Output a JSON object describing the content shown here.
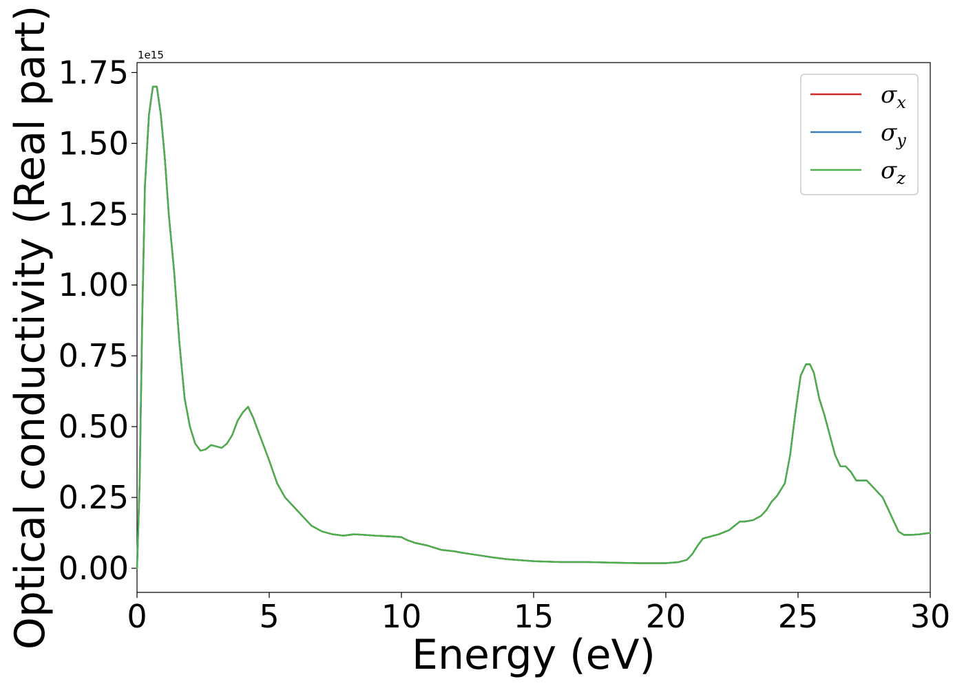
{
  "chart_data": {
    "type": "line",
    "xlabel": "Energy (eV)",
    "ylabel": "Optical conductivity (Real part)",
    "y_offset_label": "1e15",
    "xlim": [
      0,
      30
    ],
    "ylim": [
      -0.085,
      1.785
    ],
    "x_ticks": [
      0,
      5,
      10,
      15,
      20,
      25,
      30
    ],
    "x_tick_labels": [
      "0",
      "5",
      "10",
      "15",
      "20",
      "25",
      "30"
    ],
    "y_ticks": [
      0.0,
      0.25,
      0.5,
      0.75,
      1.0,
      1.25,
      1.5,
      1.75
    ],
    "y_tick_labels": [
      "0.00",
      "0.25",
      "0.50",
      "0.75",
      "1.00",
      "1.25",
      "1.50",
      "1.75"
    ],
    "grid": false,
    "legend_position": "top-right",
    "x": [
      0,
      0.1,
      0.2,
      0.3,
      0.45,
      0.6,
      0.75,
      0.9,
      1.05,
      1.2,
      1.4,
      1.6,
      1.8,
      2.0,
      2.2,
      2.4,
      2.6,
      2.8,
      3.0,
      3.2,
      3.4,
      3.6,
      3.8,
      4.0,
      4.2,
      4.4,
      4.6,
      4.8,
      5.0,
      5.3,
      5.6,
      5.9,
      6.2,
      6.6,
      7.0,
      7.4,
      7.8,
      8.2,
      8.6,
      9.0,
      9.5,
      10.0,
      10.2,
      10.5,
      11.0,
      11.5,
      12.0,
      12.3,
      13.0,
      13.5,
      14.0,
      15.0,
      16.0,
      17.0,
      18.0,
      19.0,
      19.5,
      20.0,
      20.5,
      20.8,
      21.0,
      21.2,
      21.4,
      21.6,
      22.0,
      22.4,
      22.6,
      22.8,
      23.0,
      23.3,
      23.6,
      23.8,
      24.0,
      24.2,
      24.5,
      24.7,
      24.9,
      25.1,
      25.3,
      25.45,
      25.6,
      25.8,
      26.0,
      26.2,
      26.4,
      26.6,
      26.8,
      27.0,
      27.2,
      27.4,
      27.6,
      27.8,
      28.0,
      28.2,
      28.4,
      28.6,
      28.8,
      29.0,
      29.3,
      29.6,
      30.0
    ],
    "series": [
      {
        "name": "σx",
        "color": "#d62728",
        "values": [
          0.0,
          0.3,
          0.9,
          1.35,
          1.6,
          1.7,
          1.7,
          1.6,
          1.45,
          1.25,
          1.05,
          0.8,
          0.6,
          0.5,
          0.44,
          0.415,
          0.42,
          0.435,
          0.43,
          0.425,
          0.44,
          0.47,
          0.52,
          0.55,
          0.57,
          0.53,
          0.48,
          0.43,
          0.38,
          0.3,
          0.25,
          0.22,
          0.19,
          0.15,
          0.13,
          0.12,
          0.115,
          0.12,
          0.118,
          0.115,
          0.113,
          0.11,
          0.1,
          0.09,
          0.08,
          0.065,
          0.06,
          0.055,
          0.045,
          0.038,
          0.032,
          0.025,
          0.022,
          0.022,
          0.02,
          0.018,
          0.018,
          0.018,
          0.022,
          0.03,
          0.05,
          0.08,
          0.105,
          0.11,
          0.12,
          0.135,
          0.15,
          0.165,
          0.165,
          0.17,
          0.185,
          0.205,
          0.235,
          0.255,
          0.3,
          0.4,
          0.55,
          0.68,
          0.72,
          0.72,
          0.69,
          0.6,
          0.54,
          0.47,
          0.4,
          0.36,
          0.36,
          0.34,
          0.31,
          0.31,
          0.31,
          0.29,
          0.27,
          0.25,
          0.21,
          0.17,
          0.13,
          0.118,
          0.118,
          0.12,
          0.125
        ]
      },
      {
        "name": "σy",
        "color": "#3a7eb8",
        "values": [
          0.0,
          0.3,
          0.9,
          1.35,
          1.6,
          1.7,
          1.7,
          1.6,
          1.45,
          1.25,
          1.05,
          0.8,
          0.6,
          0.5,
          0.44,
          0.415,
          0.42,
          0.435,
          0.43,
          0.425,
          0.44,
          0.47,
          0.52,
          0.55,
          0.57,
          0.53,
          0.48,
          0.43,
          0.38,
          0.3,
          0.25,
          0.22,
          0.19,
          0.15,
          0.13,
          0.12,
          0.115,
          0.12,
          0.118,
          0.115,
          0.113,
          0.11,
          0.1,
          0.09,
          0.08,
          0.065,
          0.06,
          0.055,
          0.045,
          0.038,
          0.032,
          0.025,
          0.022,
          0.022,
          0.02,
          0.018,
          0.018,
          0.018,
          0.022,
          0.03,
          0.05,
          0.08,
          0.105,
          0.11,
          0.12,
          0.135,
          0.15,
          0.165,
          0.165,
          0.17,
          0.185,
          0.205,
          0.235,
          0.255,
          0.3,
          0.4,
          0.55,
          0.68,
          0.72,
          0.72,
          0.69,
          0.6,
          0.54,
          0.47,
          0.4,
          0.36,
          0.36,
          0.34,
          0.31,
          0.31,
          0.31,
          0.29,
          0.27,
          0.25,
          0.21,
          0.17,
          0.13,
          0.118,
          0.118,
          0.12,
          0.125
        ]
      },
      {
        "name": "σz",
        "color": "#4daf4a",
        "values": [
          0.0,
          0.3,
          0.9,
          1.35,
          1.6,
          1.7,
          1.7,
          1.6,
          1.45,
          1.25,
          1.05,
          0.8,
          0.6,
          0.5,
          0.44,
          0.415,
          0.42,
          0.435,
          0.43,
          0.425,
          0.44,
          0.47,
          0.52,
          0.55,
          0.57,
          0.53,
          0.48,
          0.43,
          0.38,
          0.3,
          0.25,
          0.22,
          0.19,
          0.15,
          0.13,
          0.12,
          0.115,
          0.12,
          0.118,
          0.115,
          0.113,
          0.11,
          0.1,
          0.09,
          0.08,
          0.065,
          0.06,
          0.055,
          0.045,
          0.038,
          0.032,
          0.025,
          0.022,
          0.022,
          0.02,
          0.018,
          0.018,
          0.018,
          0.022,
          0.03,
          0.05,
          0.08,
          0.105,
          0.11,
          0.12,
          0.135,
          0.15,
          0.165,
          0.165,
          0.17,
          0.185,
          0.205,
          0.235,
          0.255,
          0.3,
          0.4,
          0.55,
          0.68,
          0.72,
          0.72,
          0.69,
          0.6,
          0.54,
          0.47,
          0.4,
          0.36,
          0.36,
          0.34,
          0.31,
          0.31,
          0.31,
          0.29,
          0.27,
          0.25,
          0.21,
          0.17,
          0.13,
          0.118,
          0.118,
          0.12,
          0.125
        ]
      }
    ]
  },
  "legend": [
    {
      "symbol": "σ",
      "sub": "x",
      "color": "#d62728"
    },
    {
      "symbol": "σ",
      "sub": "y",
      "color": "#3a7eb8"
    },
    {
      "symbol": "σ",
      "sub": "z",
      "color": "#4daf4a"
    }
  ]
}
